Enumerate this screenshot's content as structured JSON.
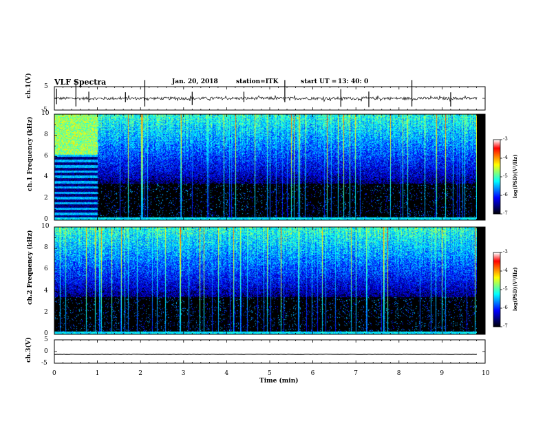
{
  "header": {
    "title": "VLF Spectra",
    "date": "Jan. 20, 2018",
    "station": "station=ITK",
    "start_label": "start  UT =",
    "start_time": "13: 40: 0"
  },
  "colors": {
    "background": "#ffffff",
    "axis": "#000000",
    "spectrogram_floor": "#000000",
    "colormap": [
      "#000000",
      "#00007f",
      "#0000ff",
      "#0080ff",
      "#00ffff",
      "#80ff80",
      "#ffff00",
      "#ff8000",
      "#ff0000",
      "#ffffff"
    ]
  },
  "chart_data": [
    {
      "type": "line",
      "id": "ch1-waveform",
      "ylabel": "ch.1(V)",
      "ylim": [
        -5,
        5
      ],
      "y_ticks": [
        "5",
        "-5"
      ],
      "xlim": [
        0,
        10
      ],
      "baseline": 0,
      "noise_amplitude": 0.6,
      "spikes_x": [
        0.05,
        0.5,
        0.8,
        1.65,
        2.1,
        3.2,
        4.4,
        5.35,
        6.65,
        7.3,
        8.3,
        9.2
      ]
    },
    {
      "type": "heatmap",
      "id": "ch1-spectrogram",
      "ylabel": "ch.1 Frequency (kHz)",
      "ylim": [
        0,
        10
      ],
      "y_ticks": [
        "0",
        "2",
        "4",
        "6",
        "8",
        "10"
      ],
      "xlim": [
        0,
        10
      ],
      "banded_until_min": 1.0,
      "colorbar": {
        "label": "log(PSD)(V²/Hz)",
        "range": [
          -7,
          -3
        ],
        "ticks": [
          "-3",
          "-4",
          "-5",
          "-6",
          "-7"
        ]
      }
    },
    {
      "type": "heatmap",
      "id": "ch2-spectrogram",
      "ylabel": "ch.2 Frequency (kHz)",
      "ylim": [
        0,
        10
      ],
      "y_ticks": [
        "0",
        "2",
        "4",
        "6",
        "8",
        "10"
      ],
      "xlim": [
        0,
        10
      ],
      "colorbar": {
        "label": "log(PSD)(V²/Hz)",
        "range": [
          -7,
          -3
        ],
        "ticks": [
          "-3",
          "-4",
          "-5",
          "-6",
          "-7"
        ]
      }
    },
    {
      "type": "line",
      "id": "ch3-waveform",
      "ylabel": "ch.3(V)",
      "ylim": [
        -5,
        5
      ],
      "y_ticks": [
        "5",
        "0",
        "-5"
      ],
      "xlim": [
        0,
        10
      ],
      "baseline": -1.2,
      "noise_amplitude": 0.05
    }
  ],
  "x_axis": {
    "label": "Time (min)",
    "ticks": [
      "0",
      "1",
      "2",
      "3",
      "4",
      "5",
      "6",
      "7",
      "8",
      "9",
      "10"
    ]
  }
}
